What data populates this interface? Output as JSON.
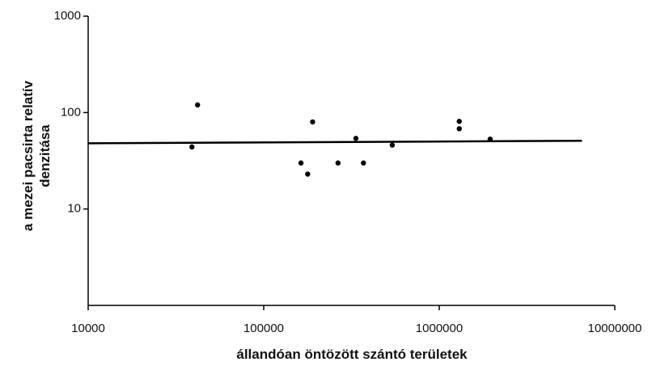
{
  "chart_data": {
    "type": "scatter",
    "title": "",
    "xlabel": "állandóan öntözött szántó területek",
    "ylabel_line1": "a mezei pacsirta relatív",
    "ylabel_line2": "denzitása",
    "x_scale": "log",
    "y_scale": "log",
    "xlim": [
      10000,
      10000000
    ],
    "ylim": [
      1,
      1000
    ],
    "x_ticks": [
      10000,
      100000,
      1000000,
      10000000
    ],
    "x_tick_labels": [
      "10000",
      "100000",
      "1000000",
      "10000000"
    ],
    "y_ticks": [
      10,
      100,
      1000
    ],
    "y_tick_labels": [
      "10",
      "100",
      "1000"
    ],
    "grid": false,
    "legend": "none",
    "points": [
      {
        "x": 39000,
        "y": 44
      },
      {
        "x": 42000,
        "y": 120
      },
      {
        "x": 163000,
        "y": 30
      },
      {
        "x": 178000,
        "y": 23
      },
      {
        "x": 190000,
        "y": 80
      },
      {
        "x": 265000,
        "y": 30
      },
      {
        "x": 335000,
        "y": 54
      },
      {
        "x": 370000,
        "y": 30
      },
      {
        "x": 540000,
        "y": 46
      },
      {
        "x": 1300000,
        "y": 68
      },
      {
        "x": 1300000,
        "y": 81
      },
      {
        "x": 1950000,
        "y": 53
      }
    ],
    "trendline": {
      "x": [
        10000,
        6500000
      ],
      "y": [
        48,
        51
      ]
    },
    "colors": {
      "points": "#000000",
      "trendline": "#000000",
      "axis": "#000000"
    }
  }
}
